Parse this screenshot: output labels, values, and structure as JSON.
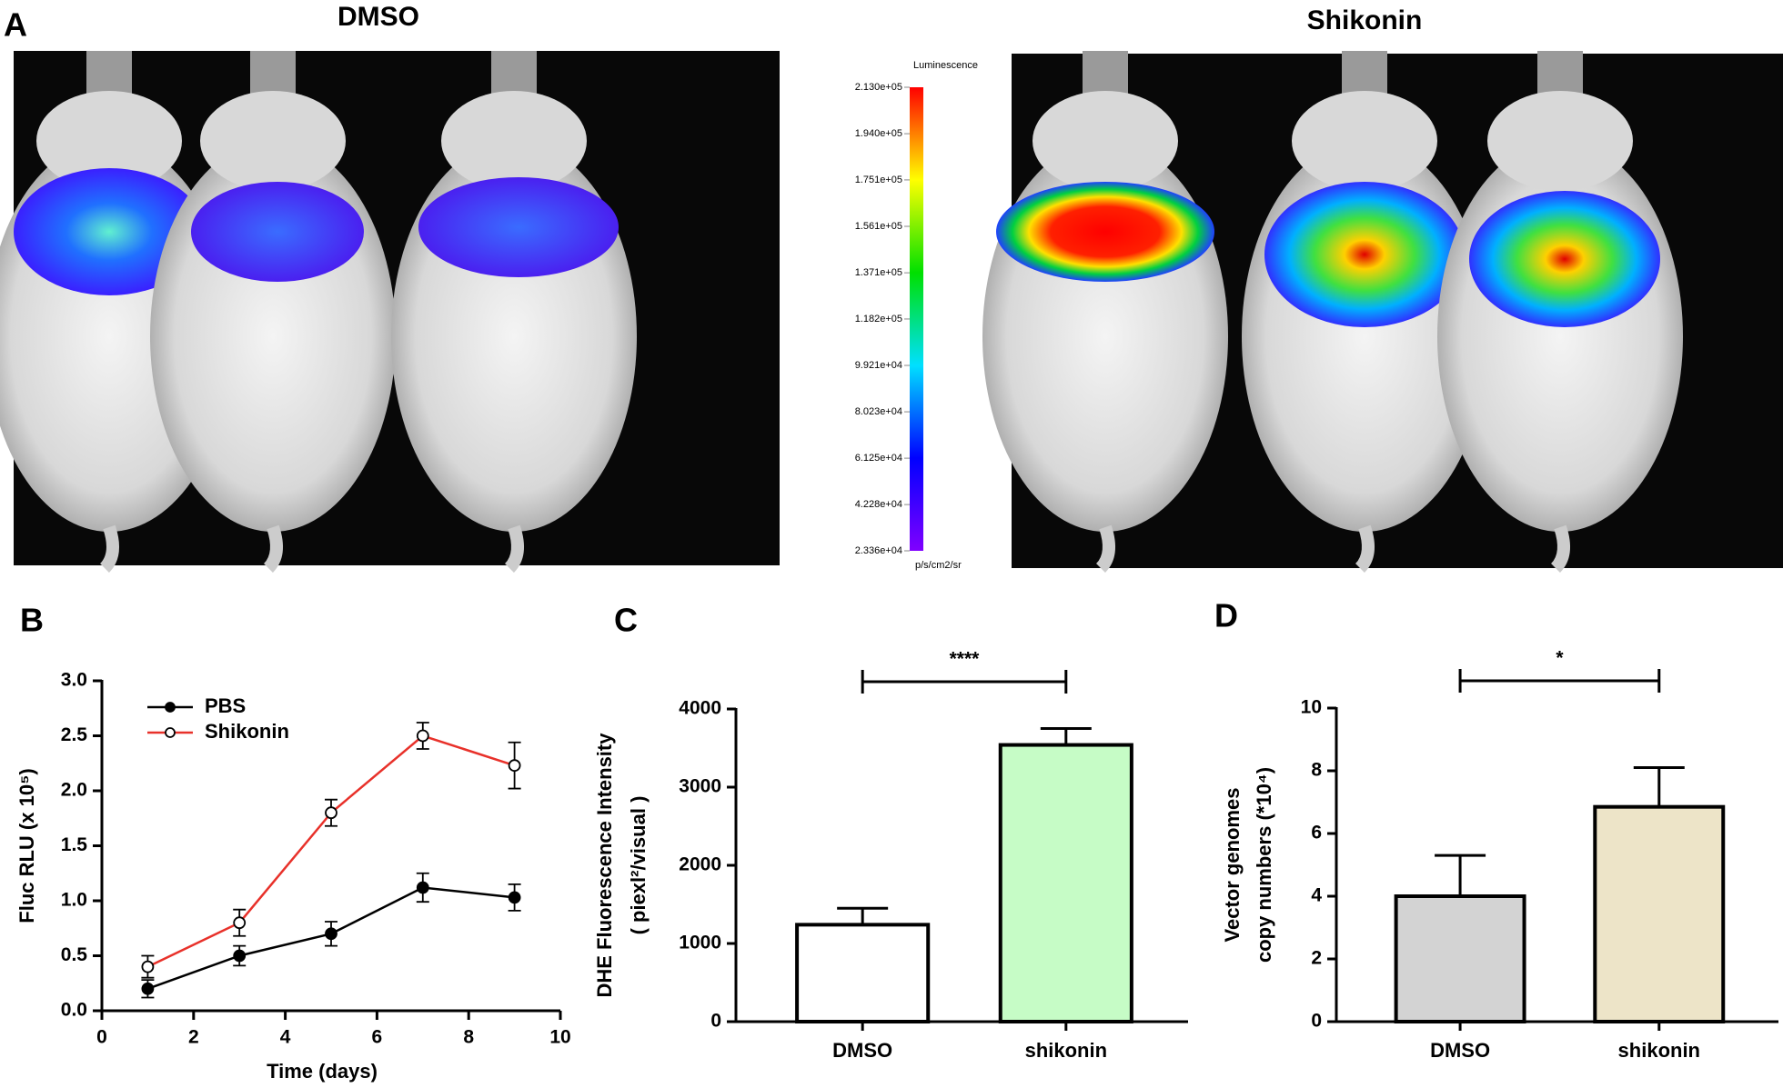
{
  "figure": {
    "panel_label": "A",
    "groups": [
      "DMSO",
      "Shikonin"
    ],
    "colorbar": {
      "title": "Luminescence",
      "unit": "p/s/cm2/sr",
      "lim": [
        23360,
        213000
      ],
      "ticks": [
        {
          "value": 23360,
          "label": "2.336e+04"
        },
        {
          "value": 42280,
          "label": "4.228e+04"
        },
        {
          "value": 61250,
          "label": "6.125e+04"
        },
        {
          "value": 80230,
          "label": "8.023e+04"
        },
        {
          "value": 99210,
          "label": "9.921e+04"
        },
        {
          "value": 118200,
          "label": "1.182e+05"
        },
        {
          "value": 137100,
          "label": "1.371e+05"
        },
        {
          "value": 156100,
          "label": "1.561e+05"
        },
        {
          "value": 175100,
          "label": "1.751e+05"
        },
        {
          "value": 194000,
          "label": "1.940e+05"
        },
        {
          "value": 213000,
          "label": "2.130e+05"
        }
      ]
    }
  },
  "chart_data": [
    {
      "type": "line",
      "panel_label": "B",
      "x_label": "Time (days)",
      "y_label": [
        "Fluc RLU (x 10⁵)"
      ],
      "x": [
        1,
        3,
        5,
        7,
        9
      ],
      "series": [
        {
          "name": "PBS",
          "color": "#000000",
          "marker_fill": "#000000",
          "values": [
            0.2,
            0.5,
            0.7,
            1.12,
            1.03
          ],
          "errors": [
            0.08,
            0.09,
            0.11,
            0.13,
            0.12
          ]
        },
        {
          "name": "Shikonin",
          "color": "#e8312a",
          "marker_fill": "#ffffff",
          "values": [
            0.4,
            0.8,
            1.8,
            2.5,
            2.23
          ],
          "errors": [
            0.1,
            0.12,
            0.12,
            0.12,
            0.21
          ]
        }
      ],
      "xlim": [
        0,
        10
      ],
      "xticks": [
        0,
        2,
        4,
        6,
        8,
        10
      ],
      "ylim": [
        0,
        3
      ],
      "yticks": [
        {
          "value": 0,
          "label": "0.0"
        },
        0.5,
        {
          "value": 1,
          "label": "1.0"
        },
        1.5,
        {
          "value": 2,
          "label": "2.0"
        },
        2.5,
        {
          "value": 3,
          "label": "3.0"
        }
      ]
    },
    {
      "type": "bar",
      "panel_label": "C",
      "y_label": [
        "DHE Fluorescence Intensity",
        "( piexl²/visual )"
      ],
      "categories": [
        "DMSO",
        "shikonin"
      ],
      "values": [
        1240,
        3540
      ],
      "errors": [
        210,
        210
      ],
      "colors": [
        "#ffffff",
        "#c6fcc6"
      ],
      "significance": "****",
      "ylim": [
        0,
        4000
      ],
      "yticks": [
        0,
        1000,
        2000,
        3000,
        4000
      ]
    },
    {
      "type": "bar",
      "panel_label": "D",
      "y_label": [
        "Vector genomes",
        "copy numbers (*10⁴)"
      ],
      "categories": [
        "DMSO",
        "shikonin"
      ],
      "values": [
        4.0,
        6.85
      ],
      "errors": [
        1.3,
        1.25
      ],
      "colors": [
        "#d3d3d3",
        "#ede4c8"
      ],
      "significance": "*",
      "ylim": [
        0,
        10
      ],
      "yticks": [
        0,
        2,
        4,
        6,
        8,
        10
      ]
    }
  ]
}
